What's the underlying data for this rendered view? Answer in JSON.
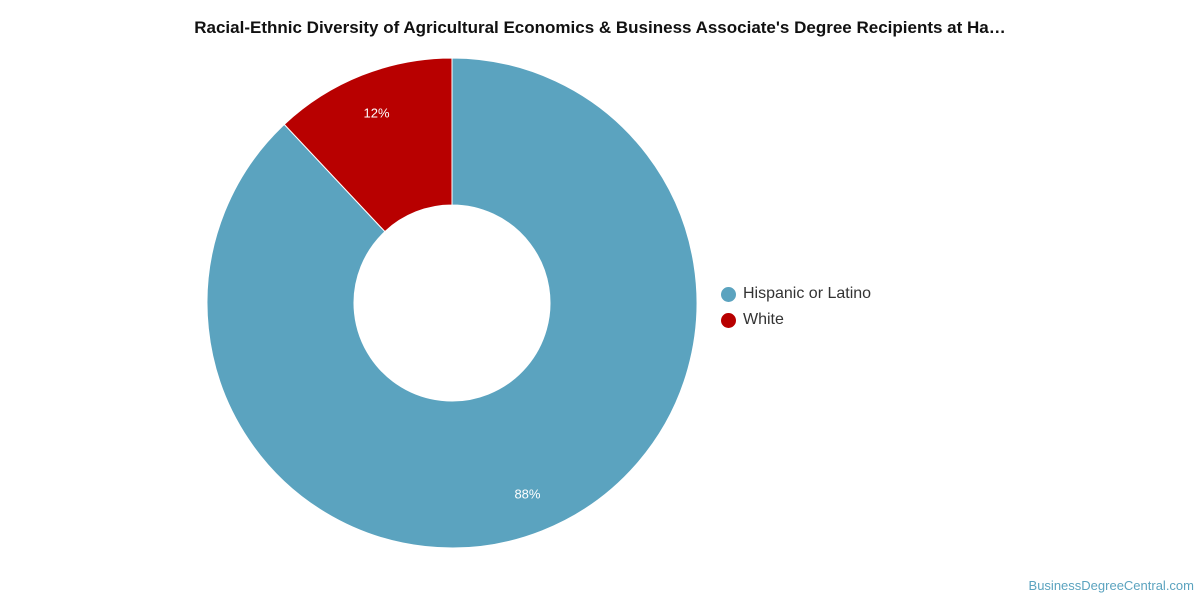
{
  "chart_data": {
    "type": "pie",
    "donut": true,
    "title": "Racial-Ethnic Diversity of Agricultural Economics & Business Associate's Degree Recipients at Ha…",
    "series": [
      {
        "name": "Hispanic or Latino",
        "value": 88,
        "label": "88%",
        "color": "#5ba3bf"
      },
      {
        "name": "White",
        "value": 12,
        "label": "12%",
        "color": "#b80000"
      }
    ],
    "legend_position": "right"
  },
  "watermark": "BusinessDegreeCentral.com"
}
